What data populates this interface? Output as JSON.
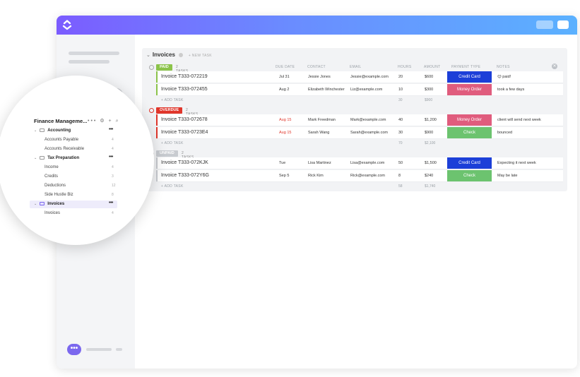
{
  "list": {
    "title": "Invoices",
    "new_task": "+ NEW TASK",
    "columns": [
      "DUE DATE",
      "CONTACT",
      "EMAIL",
      "HOURS",
      "AMOUNT",
      "PAYMENT TYPE",
      "NOTES"
    ],
    "groups": [
      {
        "status": "PAID",
        "color": "#8bc34a",
        "count": "2 TASKS",
        "rows": [
          {
            "name": "Invoice T333-072219",
            "due": "Jul 31",
            "contact": "Jessie Jones",
            "email": "Jessie@example.com",
            "hours": "20",
            "amount": "$600",
            "ptype": "Credit Card",
            "ptype_color": "#1c3fd8",
            "notes": "😊 paid!"
          },
          {
            "name": "Invoice T333-072455",
            "due": "Aug 2",
            "contact": "Elizabeth Winchester",
            "email": "Liz@example.com",
            "hours": "10",
            "amount": "$300",
            "ptype": "Money Order",
            "ptype_color": "#e05c7d",
            "notes": "took a few days"
          }
        ],
        "add_task": "+ ADD TASK",
        "sum_hours": "30",
        "sum_amount": "$900"
      },
      {
        "status": "OVERDUE",
        "color": "#e0362b",
        "count": "2 TASKS",
        "rows": [
          {
            "name": "Invoice T333-072678",
            "due": "Aug 15",
            "contact": "Mark Freedman",
            "email": "Mark@example.com",
            "hours": "40",
            "amount": "$1,200",
            "ptype": "Money Order",
            "ptype_color": "#e05c7d",
            "notes": "client will send next week"
          },
          {
            "name": "Invoice T333-0723E4",
            "due": "Aug 15",
            "contact": "Sarah Wang",
            "email": "Sarah@example.com",
            "hours": "30",
            "amount": "$900",
            "ptype": "Check",
            "ptype_color": "#6cc36f",
            "notes": "bounced"
          }
        ],
        "add_task": "+ ADD TASK",
        "sum_hours": "70",
        "sum_amount": "$2,100"
      },
      {
        "status": "UNPAID",
        "color": "#c8cbd0",
        "count": "2 TASKS",
        "rows": [
          {
            "name": "Invoice T333-072KJK",
            "due": "Tue",
            "contact": "Lisa Martinez",
            "email": "Lisa@example.com",
            "hours": "50",
            "amount": "$1,500",
            "ptype": "Credit Card",
            "ptype_color": "#1c3fd8",
            "notes": "Expecting it next week"
          },
          {
            "name": "Invoice T333-072Y6G",
            "due": "Sep 5",
            "contact": "Rick Kim",
            "email": "Rick@example.com",
            "hours": "8",
            "amount": "$240",
            "ptype": "Check",
            "ptype_color": "#6cc36f",
            "notes": "May be late"
          }
        ],
        "add_task": "+ ADD TASK",
        "sum_hours": "58",
        "sum_amount": "$1,740"
      }
    ]
  },
  "sidebar_zoom": {
    "space_title": "Finance Manageme...",
    "items": [
      {
        "label": "Accounting",
        "type": "folder",
        "count": "•••"
      },
      {
        "label": "Accounts Payable",
        "type": "list",
        "count": "4"
      },
      {
        "label": "Accounts Receivable",
        "type": "list",
        "count": "4"
      },
      {
        "label": "Tax Preparation",
        "type": "folder",
        "count": "•••"
      },
      {
        "label": "Income",
        "type": "list",
        "count": "4"
      },
      {
        "label": "Credits",
        "type": "list",
        "count": "3"
      },
      {
        "label": "Deductions",
        "type": "list",
        "count": "12"
      },
      {
        "label": "Side Hustle Biz",
        "type": "list",
        "count": "8"
      },
      {
        "label": "Invoices",
        "type": "folder-active",
        "count": "•••"
      },
      {
        "label": "Invoices",
        "type": "list",
        "count": "4"
      }
    ]
  },
  "colors": {
    "accent": "#7b68ee",
    "topbar_start": "#7b5cff",
    "topbar_end": "#5bb1ff"
  }
}
